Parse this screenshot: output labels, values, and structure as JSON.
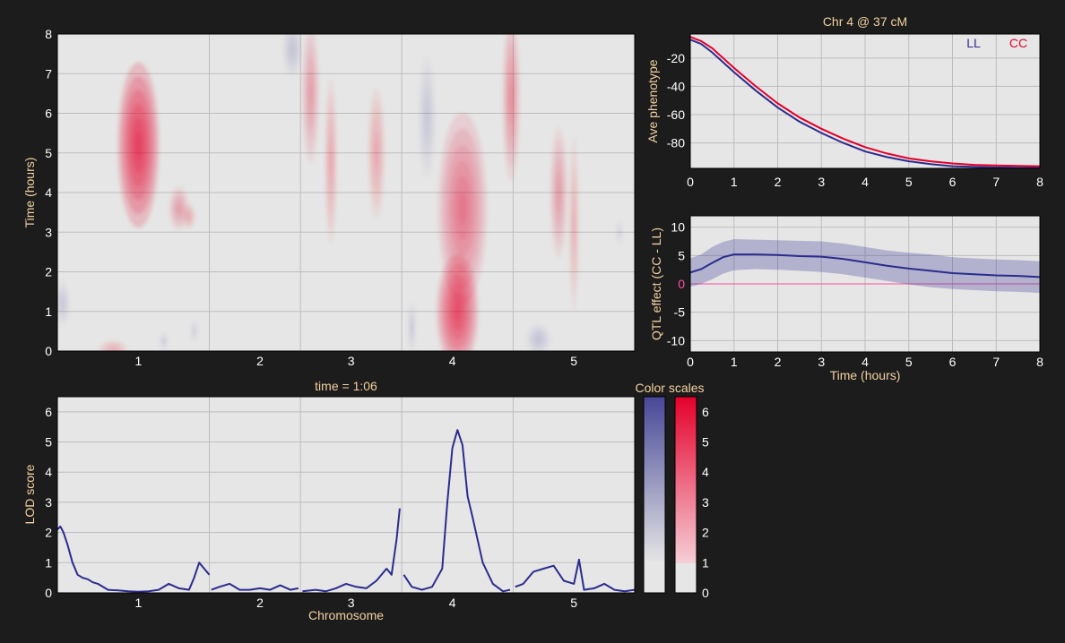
{
  "colors": {
    "background": "#1c1c1c",
    "panel": "#e6e6e6",
    "grid": "#bdbdbd",
    "ll": "#2b2b8e",
    "cc": "#e4002b",
    "positive": "#e4002b",
    "negative": "#6a6aa8",
    "label": "#f3d2a0",
    "tick": "#ffffff",
    "zero": "#ff4fa0"
  },
  "chart_data": [
    {
      "id": "heatmap",
      "type": "heatmap",
      "xlabel": "",
      "ylabel": "Time (hours)",
      "x_tick_labels": [
        "1",
        "2",
        "3",
        "4",
        "5"
      ],
      "yticks": [
        0,
        1,
        2,
        3,
        4,
        5,
        6,
        7,
        8
      ],
      "ylim": [
        0,
        8
      ],
      "x_range": [
        0,
        5.7
      ],
      "chromosome_boundaries": [
        1.5,
        2.4,
        3.4,
        4.5
      ],
      "chromosome_centers": [
        0.8,
        2,
        2.9,
        3.9,
        5.1
      ],
      "blobs": [
        {
          "x": 0.8,
          "y": 5.2,
          "sx": 0.17,
          "sy": 1.9,
          "lod": 6.2
        },
        {
          "x": 1.2,
          "y": 3.6,
          "sx": 0.08,
          "sy": 0.5,
          "lod": 2.0
        },
        {
          "x": 1.3,
          "y": 3.4,
          "sx": 0.05,
          "sy": 0.3,
          "lod": 1.7
        },
        {
          "x": 0.55,
          "y": 0.05,
          "sx": 0.12,
          "sy": 0.2,
          "lod": 1.6
        },
        {
          "x": 0.05,
          "y": 1.2,
          "sx": 0.06,
          "sy": 0.5,
          "lod": -1.6
        },
        {
          "x": 1.05,
          "y": 0.25,
          "sx": 0.03,
          "sy": 0.2,
          "lod": -1.3
        },
        {
          "x": 1.35,
          "y": 0.5,
          "sx": 0.03,
          "sy": 0.25,
          "lod": -1.2
        },
        {
          "x": 2.32,
          "y": 7.6,
          "sx": 0.08,
          "sy": 0.6,
          "lod": -1.9
        },
        {
          "x": 2.5,
          "y": 6.5,
          "sx": 0.07,
          "sy": 1.6,
          "lod": 2.0
        },
        {
          "x": 2.7,
          "y": 4.8,
          "sx": 0.05,
          "sy": 1.9,
          "lod": 1.8
        },
        {
          "x": 3.15,
          "y": 5.0,
          "sx": 0.07,
          "sy": 1.5,
          "lod": 1.8
        },
        {
          "x": 3.65,
          "y": 5.9,
          "sx": 0.07,
          "sy": 1.4,
          "lod": -1.7
        },
        {
          "x": 3.5,
          "y": 0.6,
          "sx": 0.03,
          "sy": 0.6,
          "lod": -1.6
        },
        {
          "x": 3.95,
          "y": 1.0,
          "sx": 0.17,
          "sy": 1.3,
          "lod": 5.4
        },
        {
          "x": 4.0,
          "y": 3.6,
          "sx": 0.2,
          "sy": 2.2,
          "lod": 3.4
        },
        {
          "x": 4.48,
          "y": 6.4,
          "sx": 0.07,
          "sy": 1.9,
          "lod": 2.6
        },
        {
          "x": 4.75,
          "y": 0.3,
          "sx": 0.1,
          "sy": 0.35,
          "lod": -1.8
        },
        {
          "x": 4.95,
          "y": 4.0,
          "sx": 0.07,
          "sy": 1.5,
          "lod": 2.0
        },
        {
          "x": 5.1,
          "y": 3.2,
          "sx": 0.04,
          "sy": 2.0,
          "lod": 1.6
        },
        {
          "x": 5.55,
          "y": 3.0,
          "sx": 0.02,
          "sy": 0.3,
          "lod": -1.2
        }
      ]
    },
    {
      "id": "lod_curve",
      "type": "line",
      "title": "time = 1:06",
      "xlabel": "Chromosome",
      "ylabel": "LOD score",
      "x_tick_labels": [
        "1",
        "2",
        "3",
        "4",
        "5"
      ],
      "yticks": [
        0,
        1,
        2,
        3,
        4,
        5,
        6
      ],
      "ylim": [
        0,
        6.5
      ],
      "x_range": [
        0,
        5.7
      ],
      "chromosome_boundaries": [
        1.5,
        2.4,
        3.4,
        4.5
      ],
      "chromosome_centers": [
        0.8,
        2,
        2.9,
        3.9,
        5.1
      ],
      "segments": [
        {
          "x": [
            0,
            0.03,
            0.06,
            0.1,
            0.15,
            0.2,
            0.25,
            0.3,
            0.35,
            0.4,
            0.5,
            0.6,
            0.7,
            0.8,
            0.9,
            1.0,
            1.1,
            1.2,
            1.3,
            1.35,
            1.4,
            1.45,
            1.5
          ],
          "y": [
            2.1,
            2.2,
            2.0,
            1.6,
            1.0,
            0.6,
            0.5,
            0.45,
            0.35,
            0.3,
            0.1,
            0.08,
            0.05,
            0.04,
            0.05,
            0.1,
            0.3,
            0.15,
            0.1,
            0.5,
            1.0,
            0.8,
            0.6
          ]
        },
        {
          "x": [
            1.52,
            1.6,
            1.7,
            1.8,
            1.9,
            2.0,
            2.1,
            2.2,
            2.3,
            2.38
          ],
          "y": [
            0.1,
            0.2,
            0.3,
            0.1,
            0.1,
            0.15,
            0.1,
            0.25,
            0.1,
            0.15
          ]
        },
        {
          "x": [
            2.42,
            2.55,
            2.65,
            2.75,
            2.85,
            2.95,
            3.05,
            3.15,
            3.25,
            3.3,
            3.35,
            3.38
          ],
          "y": [
            0.05,
            0.1,
            0.05,
            0.15,
            0.3,
            0.2,
            0.15,
            0.4,
            0.8,
            0.6,
            1.8,
            2.8
          ]
        },
        {
          "x": [
            3.42,
            3.5,
            3.6,
            3.7,
            3.8,
            3.85,
            3.9,
            3.95,
            4.0,
            4.05,
            4.1,
            4.2,
            4.3,
            4.4,
            4.47
          ],
          "y": [
            0.6,
            0.2,
            0.1,
            0.2,
            0.8,
            3.0,
            4.8,
            5.4,
            4.9,
            3.2,
            2.5,
            1.0,
            0.3,
            0.05,
            0.1
          ]
        },
        {
          "x": [
            4.52,
            4.6,
            4.7,
            4.8,
            4.9,
            5.0,
            5.1,
            5.15,
            5.2,
            5.3,
            5.4,
            5.5,
            5.6,
            5.7
          ],
          "y": [
            0.2,
            0.3,
            0.7,
            0.8,
            0.9,
            0.4,
            0.3,
            1.1,
            0.1,
            0.15,
            0.3,
            0.1,
            0.05,
            0.1
          ]
        }
      ]
    },
    {
      "id": "color_scales",
      "type": "heatmap",
      "title": "Color scales",
      "yticks": [
        0,
        1,
        2,
        3,
        4,
        5,
        6
      ],
      "ylim": [
        0,
        6.5
      ],
      "threshold": 1
    },
    {
      "id": "phenotype",
      "type": "line",
      "title": "Chr 4 @ 37 cM",
      "xlabel": "",
      "ylabel": "Ave phenotype",
      "xticks": [
        0,
        1,
        2,
        3,
        4,
        5,
        6,
        7,
        8
      ],
      "yticks": [
        -20,
        -40,
        -60,
        -80
      ],
      "xlim": [
        0,
        8
      ],
      "ylim": [
        -98,
        -3
      ],
      "legend": "top-right",
      "series": [
        {
          "name": "LL",
          "x": [
            0,
            0.25,
            0.5,
            1,
            1.5,
            2,
            2.5,
            3,
            3.5,
            4,
            4.5,
            5,
            5.5,
            6,
            6.5,
            7,
            7.5,
            8
          ],
          "y": [
            -7,
            -10,
            -16,
            -30,
            -43,
            -55,
            -65,
            -73,
            -80,
            -86,
            -90,
            -93,
            -95,
            -96.5,
            -97,
            -97.3,
            -97.5,
            -97.5
          ]
        },
        {
          "name": "CC",
          "x": [
            0,
            0.25,
            0.5,
            1,
            1.5,
            2,
            2.5,
            3,
            3.5,
            4,
            4.5,
            5,
            5.5,
            6,
            6.5,
            7,
            7.5,
            8
          ],
          "y": [
            -5,
            -8,
            -13,
            -27,
            -40,
            -52,
            -62,
            -70,
            -77,
            -83,
            -87.5,
            -91,
            -93,
            -94.5,
            -95.5,
            -96,
            -96.3,
            -96.5
          ]
        }
      ]
    },
    {
      "id": "qtl_effect",
      "type": "area",
      "title": "",
      "xlabel": "Time (hours)",
      "ylabel": "QTL effect (CC - LL)",
      "xticks": [
        0,
        1,
        2,
        3,
        4,
        5,
        6,
        7,
        8
      ],
      "yticks": [
        10,
        5,
        0,
        -5,
        -10
      ],
      "xlim": [
        0,
        8
      ],
      "ylim": [
        -12,
        12
      ],
      "series": [
        {
          "name": "",
          "x": [
            0,
            0.25,
            0.5,
            0.75,
            1,
            1.5,
            2,
            2.5,
            3,
            3.5,
            4,
            4.5,
            5,
            5.5,
            6,
            6.5,
            7,
            7.5,
            8
          ],
          "y": [
            2.0,
            2.6,
            3.7,
            4.7,
            5.2,
            5.2,
            5.1,
            4.9,
            4.8,
            4.4,
            3.8,
            3.2,
            2.7,
            2.3,
            1.9,
            1.7,
            1.5,
            1.4,
            1.2
          ],
          "lower": [
            -0.5,
            0,
            0.8,
            1.8,
            2.4,
            2.6,
            2.5,
            2.3,
            2.1,
            1.7,
            1.1,
            0.5,
            -0.1,
            -0.6,
            -0.9,
            -1.1,
            -1.3,
            -1.4,
            -1.6
          ],
          "upper": [
            4.5,
            5.2,
            6.5,
            7.4,
            7.9,
            7.8,
            7.7,
            7.6,
            7.5,
            7.1,
            6.5,
            5.9,
            5.5,
            5.2,
            4.7,
            4.5,
            4.3,
            4.2,
            4.0
          ]
        }
      ]
    }
  ]
}
